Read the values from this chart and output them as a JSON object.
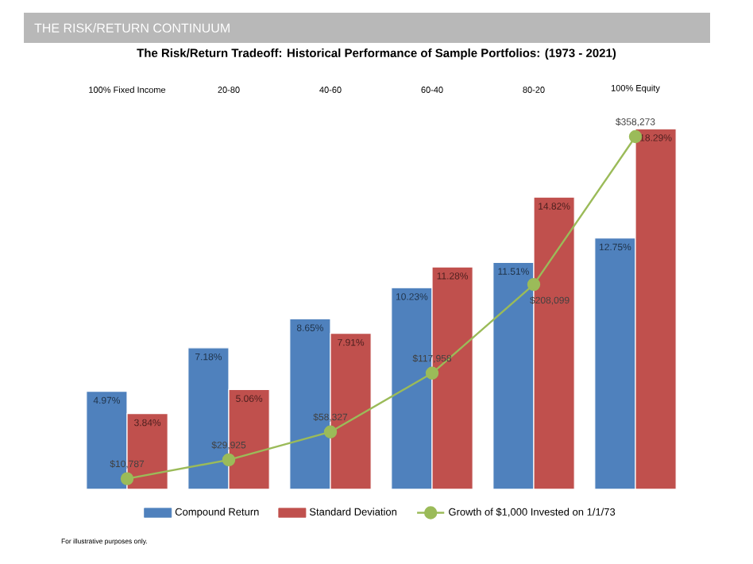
{
  "chart_data": {
    "type": "bar",
    "title": "THE RISK/RETURN CONTINUUM",
    "subtitle": "The Risk/Return Tradeoff: Historical Performance of Sample Portfolios: (1973 - 2021)",
    "categories": [
      "100% Fixed Income",
      "20-80",
      "40-60",
      "60-40",
      "80-20",
      "100% Equity"
    ],
    "series": [
      {
        "name": "Compound Return",
        "color": "#4f81bd",
        "values": [
          4.97,
          7.18,
          8.65,
          10.23,
          11.51,
          12.75
        ],
        "value_labels": [
          "4.97%",
          "7.18%",
          "8.65%",
          "10.23%",
          "11.51%",
          "12.75%"
        ]
      },
      {
        "name": "Standard Deviation",
        "color": "#c0504d",
        "values": [
          3.84,
          5.06,
          7.91,
          11.28,
          14.82,
          18.29
        ],
        "value_labels": [
          "3.84%",
          "5.06%",
          "7.91%",
          "11.28%",
          "14.82%",
          "18.29%"
        ]
      },
      {
        "name": "Growth of $1,000 Invested on 1/1/73",
        "type": "line",
        "axis": "y2",
        "color": "#9bbb59",
        "marker": "circle",
        "line_style": "solid",
        "values": [
          10787,
          29925,
          58327,
          117958,
          208099,
          358273
        ],
        "value_labels": [
          "$10,787",
          "$29,925",
          "$58,327",
          "$117,958",
          "$208,099",
          "$358,273"
        ]
      }
    ],
    "tick_labels": "x",
    "legend": "bottom",
    "grid": false,
    "annotations": [
      "For illustrative purposes only."
    ]
  }
}
